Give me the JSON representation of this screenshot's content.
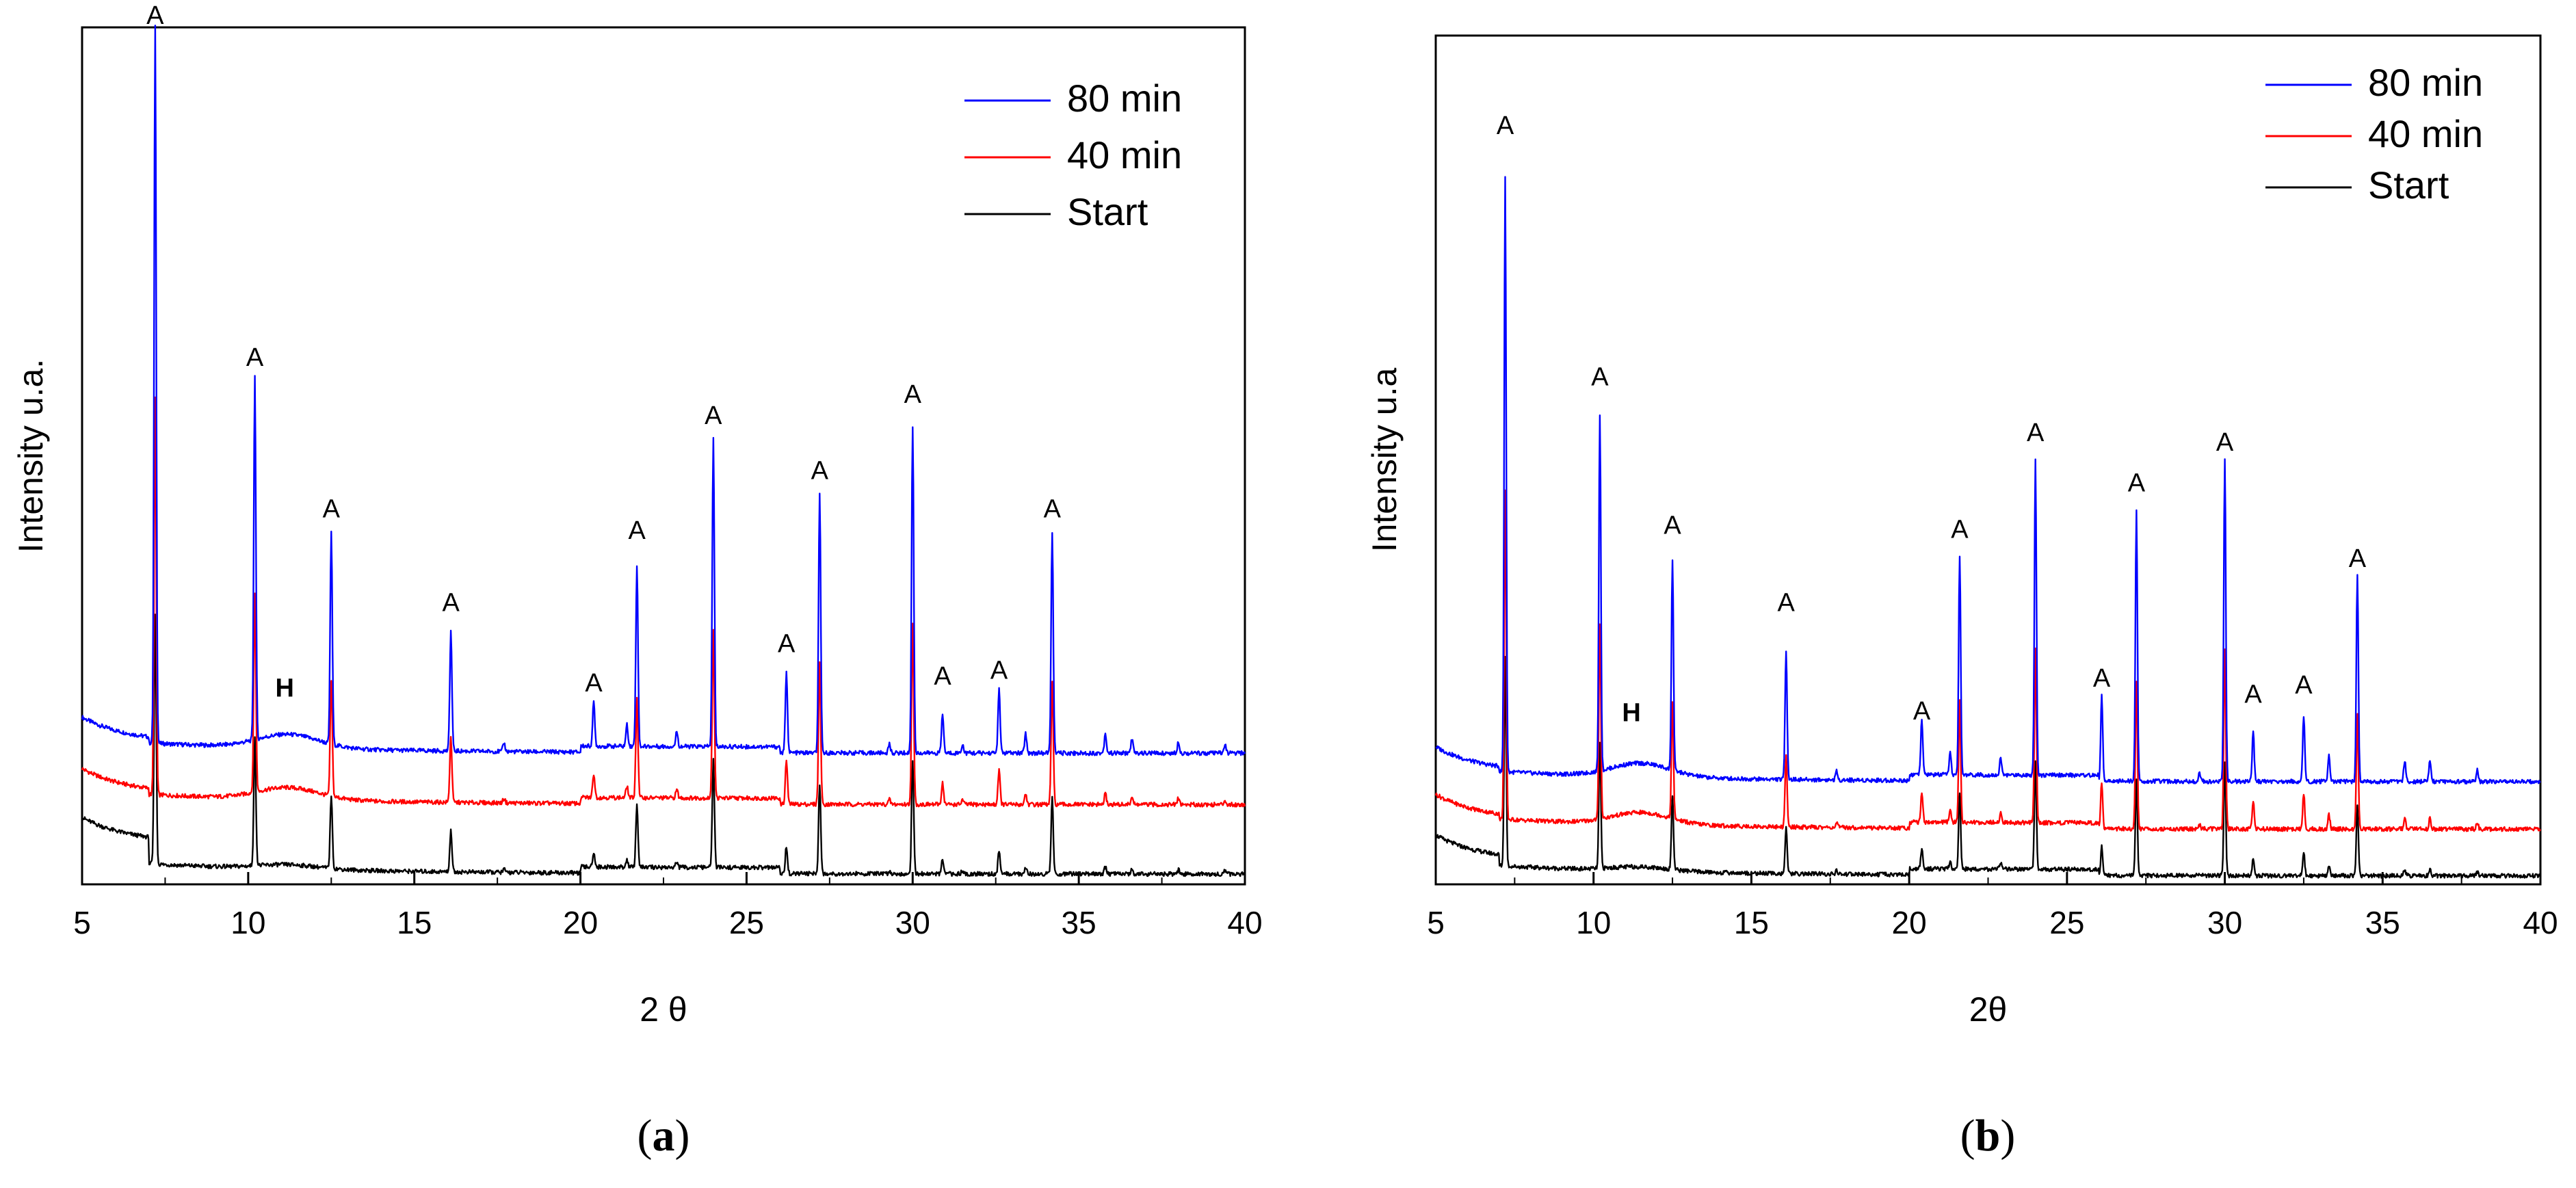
{
  "chart_data": [
    {
      "type": "line",
      "panel": "a",
      "caption": {
        "open": "(",
        "letter": "a",
        "close": ")"
      },
      "xlabel": "2 θ",
      "ylabel": "Intensity u.a.",
      "xlim": [
        5,
        40
      ],
      "ylim": [
        0,
        100
      ],
      "xticks": [
        5,
        10,
        15,
        20,
        25,
        30,
        35,
        40
      ],
      "legend_position": "top-right",
      "series": [
        {
          "name": "80 min",
          "color": "#0000ff",
          "baseline": 16.5,
          "offset": 15.3,
          "scale": 1.0,
          "hump": 1.6
        },
        {
          "name": "40 min",
          "color": "#ff0000",
          "baseline": 10.5,
          "offset": 9.3,
          "scale": 0.55,
          "hump": 1.4
        },
        {
          "name": "Start",
          "color": "#000000",
          "baseline": 4.8,
          "offset": 1.2,
          "scale": 0.35,
          "hump": 0.5
        }
      ],
      "peaks": [
        {
          "x": 7.2,
          "height": 83.9
        },
        {
          "x": 10.2,
          "height": 42.4
        },
        {
          "x": 12.5,
          "height": 24.6
        },
        {
          "x": 16.1,
          "height": 14.0
        },
        {
          "x": 17.7,
          "height": 1.0
        },
        {
          "x": 20.4,
          "height": 5.1
        },
        {
          "x": 21.4,
          "height": 2.5
        },
        {
          "x": 21.7,
          "height": 21.2
        },
        {
          "x": 22.9,
          "height": 1.8
        },
        {
          "x": 24.0,
          "height": 36.0
        },
        {
          "x": 26.2,
          "height": 9.3
        },
        {
          "x": 27.2,
          "height": 30.1
        },
        {
          "x": 29.3,
          "height": 1.0
        },
        {
          "x": 30.0,
          "height": 38.1
        },
        {
          "x": 30.9,
          "height": 4.6
        },
        {
          "x": 31.5,
          "height": 1.0
        },
        {
          "x": 32.6,
          "height": 7.4
        },
        {
          "x": 33.4,
          "height": 2.3
        },
        {
          "x": 34.2,
          "height": 25.7
        },
        {
          "x": 35.8,
          "height": 2.3
        },
        {
          "x": 36.6,
          "height": 1.7
        },
        {
          "x": 38.0,
          "height": 1.4
        },
        {
          "x": 39.4,
          "height": 1.0
        }
      ],
      "hump_center": 11.2,
      "annotations": [
        {
          "label": "A",
          "x": 7.2,
          "y": 100.4,
          "bold": false
        },
        {
          "label": "A",
          "x": 10.2,
          "y": 60.5,
          "bold": false
        },
        {
          "label": "A",
          "x": 12.5,
          "y": 42.8,
          "bold": false
        },
        {
          "label": "A",
          "x": 16.1,
          "y": 31.9,
          "bold": false
        },
        {
          "label": "H",
          "x": 11.1,
          "y": 21.9,
          "bold": true
        },
        {
          "label": "A",
          "x": 20.4,
          "y": 22.5,
          "bold": false
        },
        {
          "label": "A",
          "x": 21.7,
          "y": 40.3,
          "bold": false
        },
        {
          "label": "A",
          "x": 24.0,
          "y": 53.7,
          "bold": false
        },
        {
          "label": "A",
          "x": 26.2,
          "y": 27.1,
          "bold": false
        },
        {
          "label": "A",
          "x": 27.2,
          "y": 47.3,
          "bold": false
        },
        {
          "label": "A",
          "x": 30.0,
          "y": 56.2,
          "bold": false
        },
        {
          "label": "A",
          "x": 30.9,
          "y": 23.3,
          "bold": false
        },
        {
          "label": "A",
          "x": 32.6,
          "y": 24.0,
          "bold": false
        },
        {
          "label": "A",
          "x": 34.2,
          "y": 42.8,
          "bold": false
        }
      ]
    },
    {
      "type": "line",
      "panel": "b",
      "caption": {
        "open": "(",
        "letter": "b",
        "close": ")"
      },
      "xlabel": "2θ",
      "ylabel": "Intensity u.a",
      "xlim": [
        5,
        40
      ],
      "ylim": [
        0,
        100
      ],
      "xticks": [
        5,
        10,
        15,
        20,
        25,
        30,
        35,
        40
      ],
      "legend_position": "top-right",
      "series": [
        {
          "name": "80 min",
          "color": "#0000ff",
          "baseline": 13.2,
          "offset": 12.1,
          "scale": 1.0,
          "hump": 1.6
        },
        {
          "name": "40 min",
          "color": "#ff0000",
          "baseline": 7.6,
          "offset": 6.5,
          "scale": 0.55,
          "hump": 1.4
        },
        {
          "name": "Start",
          "color": "#000000",
          "baseline": 2.8,
          "offset": 1.0,
          "scale": 0.35,
          "hump": 0.5
        }
      ],
      "peaks": [
        {
          "x": 7.2,
          "height": 70.1
        },
        {
          "x": 10.2,
          "height": 42.0
        },
        {
          "x": 12.5,
          "height": 24.8
        },
        {
          "x": 16.1,
          "height": 15.3
        },
        {
          "x": 17.7,
          "height": 1.0
        },
        {
          "x": 20.4,
          "height": 6.6
        },
        {
          "x": 21.3,
          "height": 2.5
        },
        {
          "x": 21.6,
          "height": 25.8
        },
        {
          "x": 22.9,
          "height": 2.0
        },
        {
          "x": 24.0,
          "height": 37.1
        },
        {
          "x": 26.1,
          "height": 10.1
        },
        {
          "x": 27.2,
          "height": 31.7
        },
        {
          "x": 29.2,
          "height": 1.0
        },
        {
          "x": 30.0,
          "height": 38.1
        },
        {
          "x": 30.9,
          "height": 6.0
        },
        {
          "x": 32.5,
          "height": 7.7
        },
        {
          "x": 33.3,
          "height": 3.0
        },
        {
          "x": 34.2,
          "height": 24.3
        },
        {
          "x": 35.7,
          "height": 2.5
        },
        {
          "x": 36.5,
          "height": 2.5
        },
        {
          "x": 38.0,
          "height": 1.4
        }
      ],
      "hump_center": 11.5,
      "annotations": [
        {
          "label": "A",
          "x": 7.2,
          "y": 88.4,
          "bold": false
        },
        {
          "label": "A",
          "x": 10.2,
          "y": 58.8,
          "bold": false
        },
        {
          "label": "A",
          "x": 12.5,
          "y": 41.3,
          "bold": false
        },
        {
          "label": "A",
          "x": 16.1,
          "y": 32.2,
          "bold": false
        },
        {
          "label": "H",
          "x": 11.2,
          "y": 19.2,
          "bold": true
        },
        {
          "label": "A",
          "x": 20.4,
          "y": 19.4,
          "bold": false
        },
        {
          "label": "A",
          "x": 21.6,
          "y": 40.8,
          "bold": false
        },
        {
          "label": "A",
          "x": 24.0,
          "y": 52.2,
          "bold": false
        },
        {
          "label": "A",
          "x": 26.1,
          "y": 23.3,
          "bold": false
        },
        {
          "label": "A",
          "x": 27.2,
          "y": 46.3,
          "bold": false
        },
        {
          "label": "A",
          "x": 30.0,
          "y": 51.1,
          "bold": false
        },
        {
          "label": "A",
          "x": 30.9,
          "y": 21.4,
          "bold": false
        },
        {
          "label": "A",
          "x": 32.5,
          "y": 22.5,
          "bold": false
        },
        {
          "label": "A",
          "x": 34.2,
          "y": 37.4,
          "bold": false
        }
      ]
    }
  ]
}
